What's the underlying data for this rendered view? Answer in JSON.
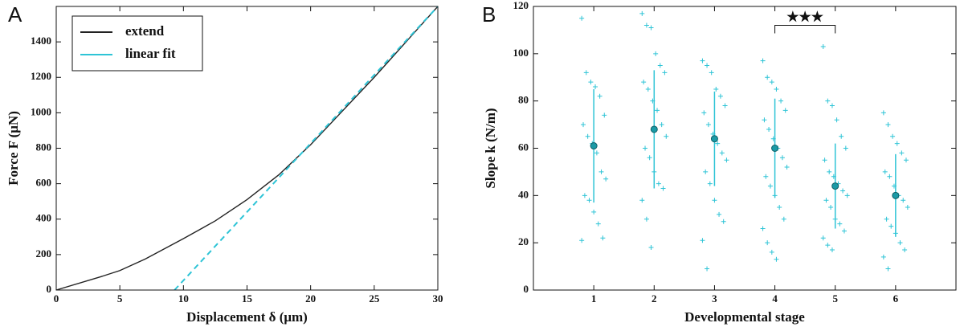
{
  "chart_data": [
    {
      "type": "line",
      "panel_label": "A",
      "xlabel": "Displacement δ (μm)",
      "ylabel": "Force F (μN)",
      "xlim": [
        0,
        30
      ],
      "xticks": [
        0,
        5,
        10,
        15,
        20,
        25,
        30
      ],
      "ylim": [
        0,
        1600
      ],
      "yticks": [
        0,
        200,
        400,
        600,
        800,
        1000,
        1200,
        1400
      ],
      "legend": "upper left",
      "series": [
        {
          "name": "extend",
          "color": "#222222",
          "dashed": false,
          "x": [
            0,
            3.5,
            5,
            7,
            10,
            12.5,
            15,
            17.5,
            20,
            22.5,
            25,
            27.5,
            30
          ],
          "values": [
            0,
            75,
            110,
            175,
            290,
            390,
            510,
            650,
            820,
            1010,
            1200,
            1400,
            1600
          ]
        },
        {
          "name": "linear fit",
          "color": "#2ec4d6",
          "dashed": true,
          "x": [
            9.3,
            30
          ],
          "values": [
            0,
            1600
          ]
        }
      ]
    },
    {
      "type": "scatter",
      "panel_label": "B",
      "xlabel": "Developmental stage",
      "ylabel": "Slope k (N/m)",
      "xlim": [
        0,
        7
      ],
      "ylim": [
        0,
        120
      ],
      "yticks": [
        0,
        20,
        40,
        60,
        80,
        100,
        120
      ],
      "categories": [
        "1",
        "2",
        "3",
        "4",
        "5",
        "6"
      ],
      "color": "#2ec4d6",
      "mean_color": "#1a9aa6",
      "values": [
        61,
        68,
        64,
        60,
        44,
        40
      ],
      "errors": [
        24,
        25,
        20,
        21,
        18,
        17.5
      ],
      "points": [
        [
          115,
          92,
          88,
          86,
          82,
          74,
          70,
          65,
          62,
          58,
          50,
          47,
          40,
          38,
          33,
          28,
          22,
          21
        ],
        [
          117,
          112,
          111,
          100,
          95,
          92,
          88,
          85,
          80,
          76,
          70,
          65,
          60,
          56,
          50,
          45,
          43,
          38,
          30,
          18
        ],
        [
          97,
          95,
          92,
          85,
          82,
          78,
          75,
          70,
          66,
          62,
          58,
          55,
          50,
          45,
          38,
          32,
          29,
          21,
          9
        ],
        [
          97,
          90,
          88,
          85,
          80,
          76,
          72,
          68,
          64,
          60,
          56,
          52,
          48,
          44,
          40,
          35,
          30,
          26,
          20,
          16,
          13
        ],
        [
          103,
          80,
          78,
          72,
          65,
          60,
          55,
          50,
          48,
          45,
          42,
          40,
          38,
          35,
          30,
          28,
          25,
          22,
          19,
          17
        ],
        [
          75,
          70,
          65,
          62,
          58,
          55,
          50,
          48,
          44,
          40,
          38,
          35,
          30,
          27,
          24,
          20,
          17,
          14,
          9
        ]
      ],
      "annotation": {
        "text": "★★★",
        "between": [
          "4",
          "5"
        ],
        "y": 112
      }
    }
  ]
}
